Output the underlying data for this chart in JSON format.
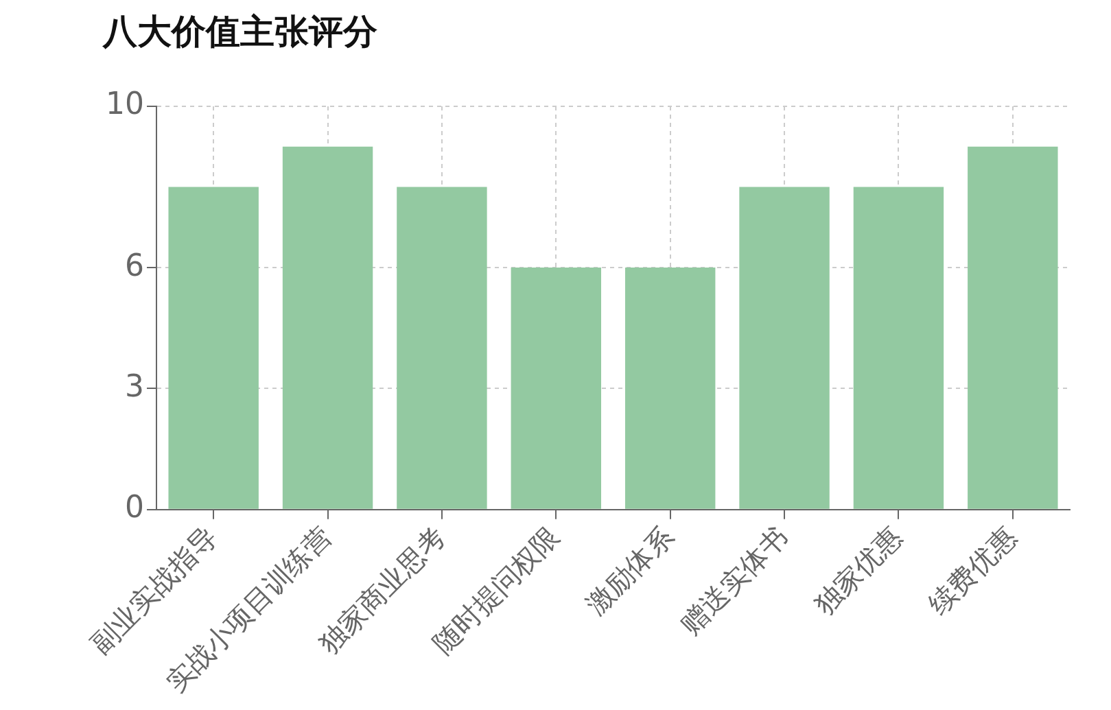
{
  "chart_data": {
    "type": "bar",
    "title": "八大价值主张评分",
    "categories": [
      "副业实战指导",
      "实战小项目训练营",
      "独家商业思考",
      "随时提问权限",
      "激励体系",
      "赠送实体书",
      "独家优惠",
      "续费优惠"
    ],
    "values": [
      8,
      9,
      8,
      6,
      6,
      8,
      8,
      9
    ],
    "color": "#93c9a1",
    "ylim": [
      0,
      10
    ],
    "yticks": [
      0,
      3,
      6,
      10
    ],
    "grid": true
  }
}
